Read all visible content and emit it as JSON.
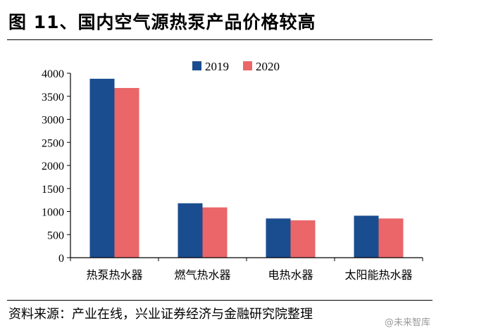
{
  "page": {
    "figure_title": "图 11、国内空气源热泵产品价格较高",
    "source_note": "资料来源：产业在线，兴业证券经济与金融研究院整理",
    "watermark": "@未来智库"
  },
  "colors": {
    "series_2019": "#1a4d8f",
    "series_2020": "#ea6669",
    "axis": "#000000"
  },
  "chart_data": {
    "type": "bar",
    "title": "",
    "xlabel": "",
    "ylabel": "",
    "categories": [
      "热泵热水器",
      "燃气热水器",
      "电热水器",
      "太阳能热水器"
    ],
    "series": [
      {
        "name": "2019",
        "values": [
          3880,
          1180,
          850,
          910
        ]
      },
      {
        "name": "2020",
        "values": [
          3680,
          1090,
          810,
          850
        ]
      }
    ],
    "ylim": [
      0,
      4000
    ],
    "yticks": [
      "0",
      "500",
      "1000",
      "1500",
      "2000",
      "2500",
      "3000",
      "3500",
      "4000"
    ],
    "grid": false,
    "legend_position": "top-center"
  }
}
